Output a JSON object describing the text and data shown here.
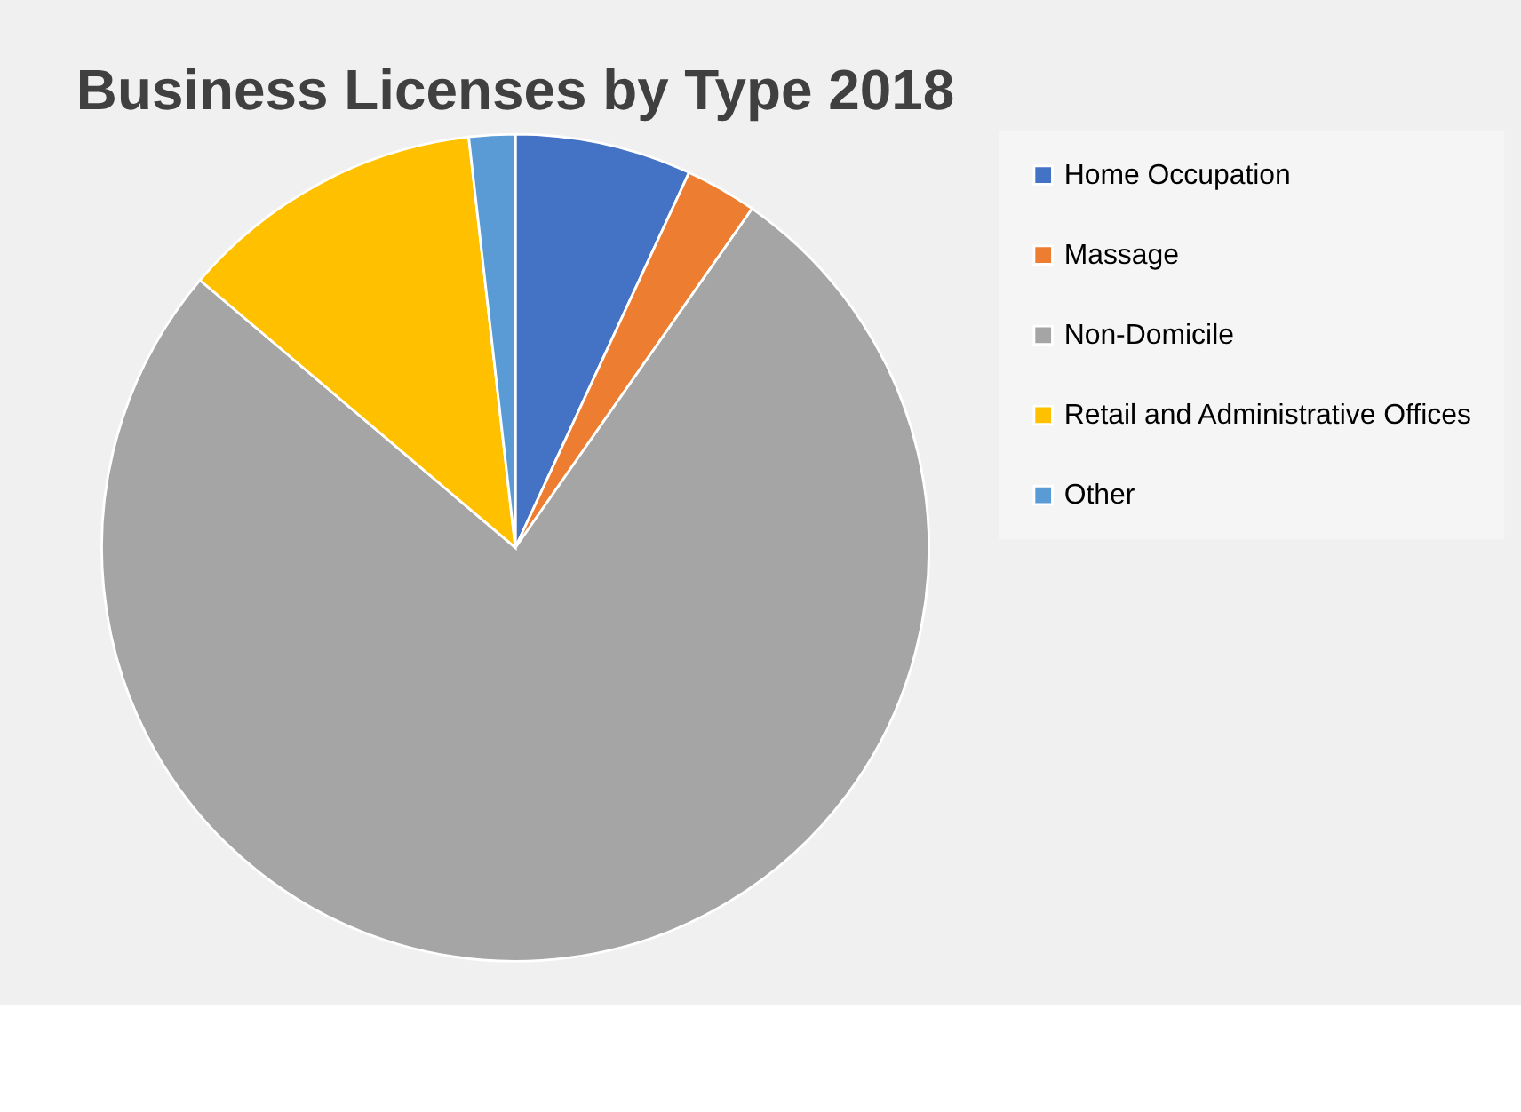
{
  "chart_data": {
    "type": "pie",
    "title": "Business Licenses by Type 2018",
    "categories": [
      "Home Occupation",
      "Massage",
      "Non-Domicile",
      "Retail and Administrative Offices",
      "Other"
    ],
    "values": [
      6.9,
      2.8,
      76.5,
      12.0,
      1.8
    ],
    "colors": [
      "#4472c4",
      "#ed7d31",
      "#a5a5a5",
      "#ffc000",
      "#5b9bd5"
    ],
    "legend": "right"
  }
}
